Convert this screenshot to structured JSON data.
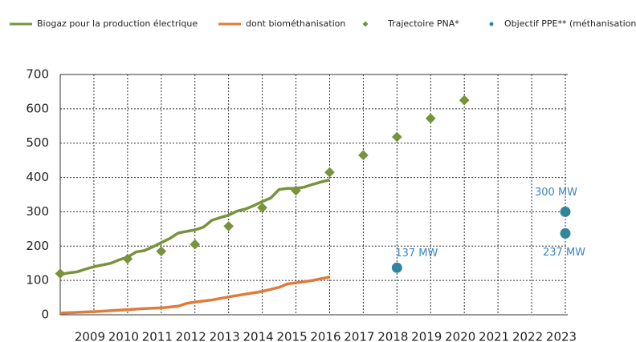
{
  "chart_data": {
    "type": "line",
    "xlim": [
      2008,
      2023
    ],
    "xticks": [
      2009,
      2010,
      2011,
      2012,
      2013,
      2014,
      2015,
      2016,
      2017,
      2018,
      2019,
      2020,
      2021,
      2022,
      2023
    ],
    "ylim": [
      0,
      700
    ],
    "yticks": [
      0,
      100,
      200,
      300,
      400,
      500,
      600,
      700
    ],
    "grid": true,
    "series": [
      {
        "name": "Biogaz pour la production électrique",
        "color": "#77933c",
        "marker": "line",
        "x": [
          2008,
          2008.25,
          2008.5,
          2008.75,
          2009,
          2009.5,
          2009.75,
          2010,
          2010.25,
          2010.5,
          2010.75,
          2011,
          2011.25,
          2011.5,
          2011.75,
          2012,
          2012.25,
          2012.5,
          2012.75,
          2013,
          2013.25,
          2013.5,
          2013.75,
          2014,
          2014.25,
          2014.5,
          2014.75,
          2015,
          2015.25,
          2015.5,
          2015.75,
          2016
        ],
        "values": [
          117,
          122,
          125,
          133,
          140,
          150,
          160,
          168,
          183,
          187,
          198,
          210,
          222,
          238,
          243,
          247,
          255,
          275,
          283,
          290,
          302,
          308,
          318,
          330,
          340,
          365,
          368,
          368,
          372,
          380,
          387,
          393
        ]
      },
      {
        "name": "dont biométhanisation",
        "color": "#e07b39",
        "marker": "line",
        "x": [
          2008,
          2008.5,
          2009,
          2009.5,
          2010,
          2010.5,
          2011,
          2011.5,
          2011.75,
          2012,
          2012.5,
          2013,
          2013.5,
          2014,
          2014.5,
          2014.75,
          2015,
          2015.5,
          2016
        ],
        "values": [
          5,
          7,
          9,
          12,
          15,
          18,
          20,
          25,
          33,
          37,
          43,
          52,
          60,
          68,
          80,
          90,
          93,
          100,
          110
        ]
      },
      {
        "name": "Trajectoire PNA*",
        "color": "#77933c",
        "marker": "diamond",
        "x": [
          2008,
          2010,
          2011,
          2012,
          2013,
          2014,
          2015,
          2016,
          2017,
          2018,
          2019,
          2020
        ],
        "values": [
          120,
          163,
          185,
          205,
          258,
          312,
          362,
          415,
          465,
          518,
          572,
          625
        ]
      },
      {
        "name": "Objectif PPE** (méthanisation)",
        "color": "#31859c",
        "marker": "circle",
        "x": [
          2018,
          2023,
          2023
        ],
        "values": [
          137,
          300,
          237
        ],
        "value_labels": [
          "137 MW",
          "300 MW",
          "237 MW"
        ]
      }
    ]
  }
}
